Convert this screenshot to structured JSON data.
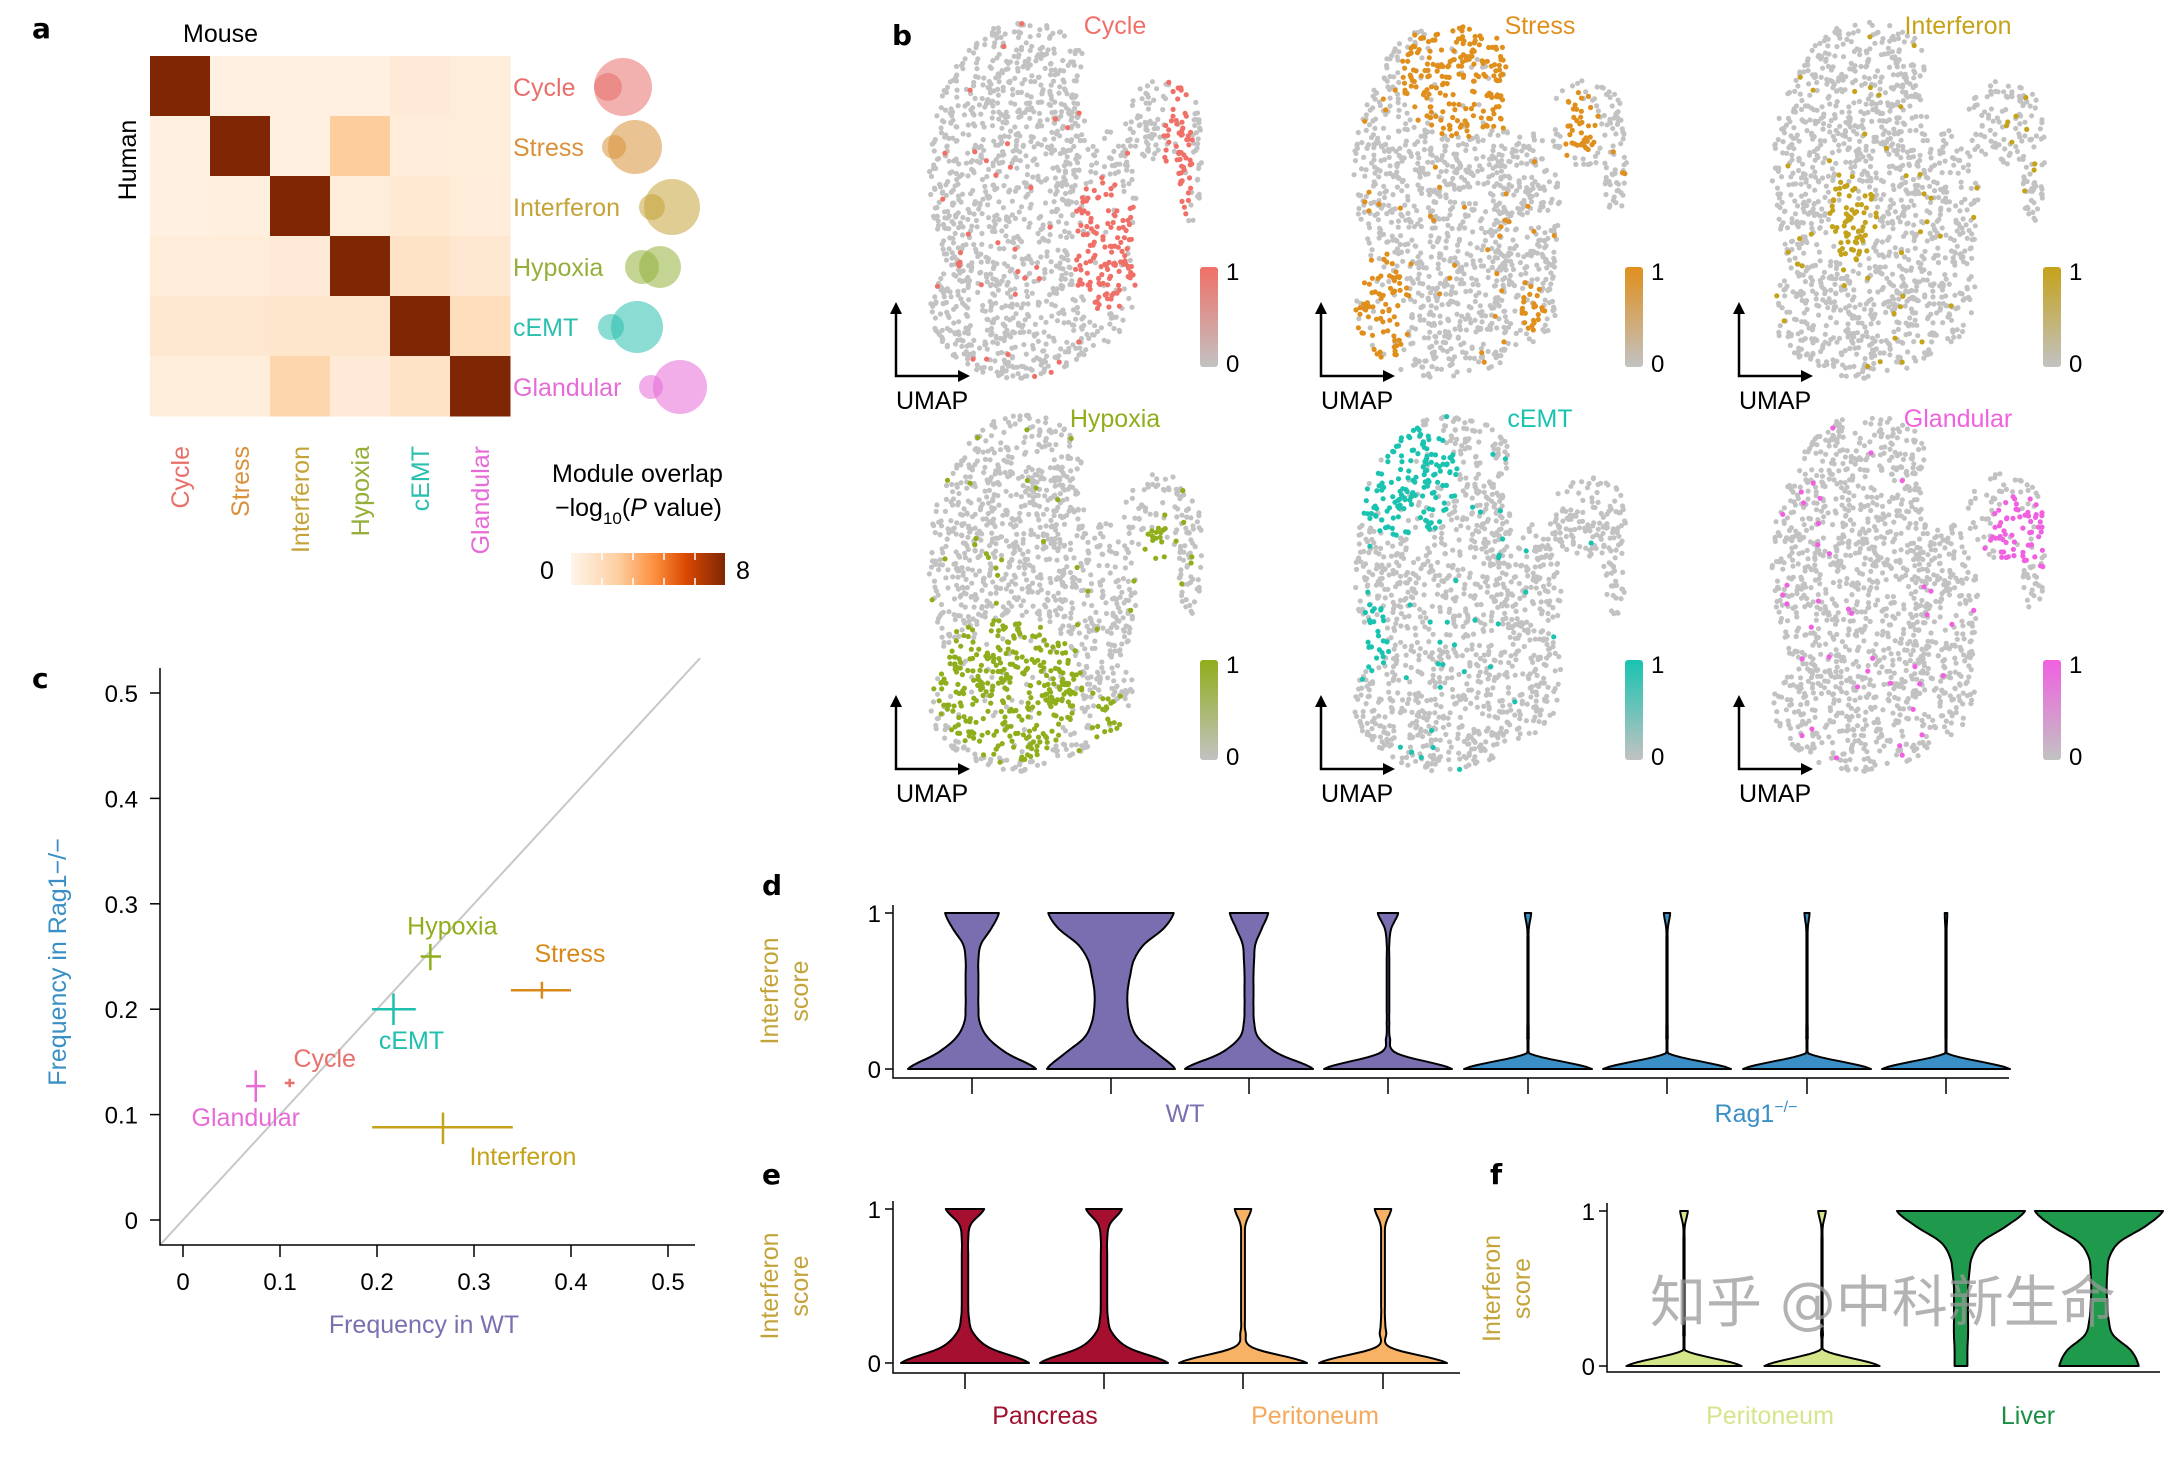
{
  "panel_labels": {
    "a": "a",
    "b": "b",
    "c": "c",
    "d": "d",
    "e": "e",
    "f": "f"
  },
  "watermark": "知乎 @中科新生命",
  "chart_data": [
    {
      "id": "a",
      "type": "heatmap",
      "xlabel": "Mouse",
      "ylabel": "Human",
      "rows": [
        "Cycle",
        "Stress",
        "Interferon",
        "Hypoxia",
        "cEMT",
        "Glandular"
      ],
      "cols": [
        "Cycle",
        "Stress",
        "Interferon",
        "Hypoxia",
        "cEMT",
        "Glandular"
      ],
      "module_colors": [
        "#e8706b",
        "#d9913a",
        "#c4a43a",
        "#94b03a",
        "#2bbfae",
        "#e66bd7"
      ],
      "values": [
        [
          8,
          0.3,
          0.3,
          0.3,
          0.7,
          0.5
        ],
        [
          0.3,
          8,
          0.3,
          2.5,
          0.6,
          0.5
        ],
        [
          0.3,
          0.4,
          8,
          0.5,
          0.8,
          0.6
        ],
        [
          0.6,
          0.6,
          0.7,
          8,
          1.2,
          0.9
        ],
        [
          0.9,
          0.9,
          1.0,
          1.0,
          8,
          1.5
        ],
        [
          0.5,
          0.5,
          2.0,
          0.7,
          1.2,
          8
        ]
      ],
      "colorbar": {
        "title": "Module overlap",
        "sub_prefix": "−log",
        "sub_index": "10",
        "sub_open": "(",
        "sub_italic": "P",
        "sub_close": " value)",
        "min": 0,
        "max": 8,
        "min_label": "0",
        "max_label": "8"
      }
    },
    {
      "id": "b",
      "type": "scatter",
      "axis_label": "UMAP",
      "panels": [
        {
          "title": "Cycle",
          "color": "#f07068",
          "cb_min": "0",
          "cb_max": "1"
        },
        {
          "title": "Stress",
          "color": "#e08f1c",
          "cb_min": "0",
          "cb_max": "1"
        },
        {
          "title": "Interferon",
          "color": "#c4a21a",
          "cb_min": "0",
          "cb_max": "1"
        },
        {
          "title": "Hypoxia",
          "color": "#8fae1b",
          "cb_min": "0",
          "cb_max": "1"
        },
        {
          "title": "cEMT",
          "color": "#19c3b0",
          "cb_min": "0",
          "cb_max": "1"
        },
        {
          "title": "Glandular",
          "color": "#f060e0",
          "cb_min": "0",
          "cb_max": "1"
        }
      ]
    },
    {
      "id": "c",
      "type": "scatter",
      "xlabel": "Frequency in WT",
      "ylabel": "Frequency in Rag1−/−",
      "xlim": [
        0,
        0.5
      ],
      "ylim": [
        0,
        0.5
      ],
      "xticks": [
        "0",
        "0.1",
        "0.2",
        "0.3",
        "0.4",
        "0.5"
      ],
      "yticks": [
        "0",
        "0.1",
        "0.2",
        "0.3",
        "0.4",
        "0.5"
      ],
      "diagonal": true,
      "points": [
        {
          "label": "Cycle",
          "x": 0.11,
          "y": 0.13,
          "xerr": [
            0.105,
            0.115
          ],
          "yerr": [
            0.126,
            0.134
          ],
          "color": "#e8706b"
        },
        {
          "label": "Glandular",
          "x": 0.075,
          "y": 0.127,
          "xerr": [
            0.065,
            0.085
          ],
          "yerr": [
            0.112,
            0.142
          ],
          "color": "#e66bd7"
        },
        {
          "label": "cEMT",
          "x": 0.217,
          "y": 0.2,
          "xerr": [
            0.195,
            0.24
          ],
          "yerr": [
            0.185,
            0.215
          ],
          "color": "#1fbfae"
        },
        {
          "label": "Hypoxia",
          "x": 0.255,
          "y": 0.25,
          "xerr": [
            0.245,
            0.266
          ],
          "yerr": [
            0.237,
            0.262
          ],
          "color": "#8fae1b"
        },
        {
          "label": "Stress",
          "x": 0.37,
          "y": 0.218,
          "xerr": [
            0.338,
            0.4
          ],
          "yerr": [
            0.21,
            0.226
          ],
          "color": "#d9891a"
        },
        {
          "label": "Interferon",
          "x": 0.268,
          "y": 0.088,
          "xerr": [
            0.195,
            0.34
          ],
          "yerr": [
            0.072,
            0.102
          ],
          "color": "#c4a21a"
        }
      ]
    },
    {
      "id": "d",
      "type": "violin",
      "ylabel_1": "Interferon",
      "ylabel_2": "score",
      "yticks": [
        "0",
        "1"
      ],
      "groups": [
        {
          "label": "WT",
          "color": "#7b6fb0"
        },
        {
          "label": "Rag1",
          "sup": "−/−",
          "color": "#3a8fc7"
        }
      ],
      "violins": [
        {
          "group": 0,
          "fill": "#7a6db0",
          "density": [
            1,
            0.55,
            0.25,
            0.12,
            0.1,
            0.1,
            0.1,
            0.1,
            0.14,
            0.3,
            0.42
          ]
        },
        {
          "group": 0,
          "fill": "#7a6db0",
          "density": [
            1,
            0.72,
            0.42,
            0.3,
            0.26,
            0.26,
            0.3,
            0.36,
            0.52,
            0.82,
            0.98
          ]
        },
        {
          "group": 0,
          "fill": "#7a6db0",
          "density": [
            1,
            0.45,
            0.15,
            0.08,
            0.07,
            0.07,
            0.07,
            0.08,
            0.1,
            0.2,
            0.3
          ]
        },
        {
          "group": 0,
          "fill": "#7a6db0",
          "density": [
            1,
            0.14,
            0.03,
            0.02,
            0.02,
            0.02,
            0.02,
            0.02,
            0.02,
            0.05,
            0.16
          ]
        },
        {
          "group": 1,
          "fill": "#3a8fc7",
          "density": [
            1,
            0.02,
            0.012,
            0.01,
            0.01,
            0.01,
            0.01,
            0.01,
            0.01,
            0.012,
            0.05
          ]
        },
        {
          "group": 1,
          "fill": "#3a8fc7",
          "density": [
            1,
            0.02,
            0.012,
            0.01,
            0.01,
            0.01,
            0.01,
            0.01,
            0.01,
            0.012,
            0.05
          ]
        },
        {
          "group": 1,
          "fill": "#3a8fc7",
          "density": [
            1,
            0.02,
            0.012,
            0.01,
            0.01,
            0.01,
            0.01,
            0.01,
            0.01,
            0.012,
            0.04
          ]
        },
        {
          "group": 1,
          "fill": "#3a8fc7",
          "density": [
            1,
            0.015,
            0.01,
            0.01,
            0.01,
            0.01,
            0.01,
            0.01,
            0.01,
            0.01,
            0.02
          ]
        }
      ]
    },
    {
      "id": "e",
      "type": "violin",
      "ylabel_1": "Interferon",
      "ylabel_2": "score",
      "yticks": [
        "0",
        "1"
      ],
      "groups": [
        {
          "label": "Pancreas",
          "color": "#a0102e"
        },
        {
          "label": "Peritoneum",
          "color": "#f5a95c"
        }
      ],
      "violins": [
        {
          "group": 0,
          "fill": "#a50f30",
          "density": [
            1,
            0.38,
            0.12,
            0.06,
            0.05,
            0.05,
            0.05,
            0.05,
            0.05,
            0.09,
            0.3
          ]
        },
        {
          "group": 0,
          "fill": "#a50f30",
          "density": [
            1,
            0.38,
            0.12,
            0.06,
            0.05,
            0.05,
            0.05,
            0.05,
            0.05,
            0.09,
            0.28
          ]
        },
        {
          "group": 1,
          "fill": "#f7b266",
          "density": [
            1,
            0.15,
            0.04,
            0.03,
            0.03,
            0.03,
            0.03,
            0.03,
            0.03,
            0.04,
            0.13
          ]
        },
        {
          "group": 1,
          "fill": "#f7b266",
          "density": [
            1,
            0.12,
            0.05,
            0.03,
            0.03,
            0.03,
            0.03,
            0.03,
            0.03,
            0.04,
            0.13
          ]
        }
      ]
    },
    {
      "id": "f",
      "type": "violin",
      "ylabel_1": "Interferon",
      "ylabel_2": "score",
      "yticks": [
        "0",
        "1"
      ],
      "groups": [
        {
          "label": "Peritoneum",
          "color": "#d4e68a"
        },
        {
          "label": "Liver",
          "color": "#1a8f44"
        }
      ],
      "violins": [
        {
          "group": 0,
          "fill": "#d4e68a",
          "density": [
            0.9,
            0.02,
            0.012,
            0.01,
            0.01,
            0.01,
            0.01,
            0.01,
            0.01,
            0.012,
            0.06
          ]
        },
        {
          "group": 0,
          "fill": "#d4e68a",
          "density": [
            0.9,
            0.04,
            0.015,
            0.01,
            0.01,
            0.01,
            0.01,
            0.01,
            0.01,
            0.012,
            0.06
          ]
        },
        {
          "group": 1,
          "fill": "#1f9a4c",
          "density": [
            0.1,
            0.1,
            0.11,
            0.11,
            0.11,
            0.11,
            0.13,
            0.17,
            0.32,
            0.7,
            1
          ]
        },
        {
          "group": 1,
          "fill": "#1f9a4c",
          "density": [
            0.62,
            0.5,
            0.22,
            0.15,
            0.13,
            0.12,
            0.13,
            0.16,
            0.32,
            0.72,
            1
          ]
        }
      ]
    }
  ]
}
